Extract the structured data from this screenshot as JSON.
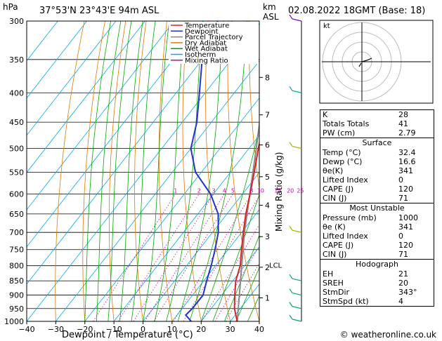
{
  "header": {
    "units": "hPa",
    "location": "37°53'N  23°43'E  94m  ASL",
    "km_label": "km",
    "asl_label": "ASL",
    "datetime": "02.08.2022  18GMT  (Base: 18)"
  },
  "chart_data": {
    "type": "skew-t",
    "xlabel": "Dewpoint / Temperature (°C)",
    "right_axis_label": "Mixing Ratio (g/kg)",
    "x_ticks": [
      -40,
      -30,
      -20,
      -10,
      0,
      10,
      20,
      30,
      40
    ],
    "pressure_levels": [
      300,
      350,
      400,
      450,
      500,
      550,
      600,
      650,
      700,
      750,
      800,
      850,
      900,
      950,
      1000
    ],
    "km_ticks": [
      {
        "km": "1",
        "p": 910
      },
      {
        "km": "2",
        "p": 805
      },
      {
        "km": "3",
        "p": 712
      },
      {
        "km": "4",
        "p": 628
      },
      {
        "km": "5",
        "p": 560
      },
      {
        "km": "6",
        "p": 493
      },
      {
        "km": "7",
        "p": 437
      },
      {
        "km": "8",
        "p": 376
      }
    ],
    "lcl": {
      "label": "LCL",
      "p": 800
    },
    "mixing_ratio_labels": [
      "1",
      "2",
      "3",
      "4",
      "5",
      "8",
      "10",
      "15",
      "20",
      "25"
    ],
    "mixing_ratios": [
      1,
      2,
      3,
      4,
      5,
      8,
      10,
      15,
      20,
      25
    ],
    "legend": [
      {
        "name": "Temperature",
        "color": "#dd2222"
      },
      {
        "name": "Dewpoint",
        "color": "#2233cc"
      },
      {
        "name": "Parcel Trajectory",
        "color": "#888888"
      },
      {
        "name": "Dry Adiabat",
        "color": "#e07b00"
      },
      {
        "name": "Wet Adiabat",
        "color": "#00aa00"
      },
      {
        "name": "Isotherm",
        "color": "#00aaee"
      },
      {
        "name": "Mixing Ratio",
        "color": "#cc00aa"
      }
    ],
    "temperature": [
      [
        1000,
        32.4
      ],
      [
        950,
        28
      ],
      [
        900,
        24.5
      ],
      [
        850,
        21
      ],
      [
        800,
        18.5
      ],
      [
        750,
        14.6
      ],
      [
        700,
        10.6
      ],
      [
        650,
        6.5
      ],
      [
        600,
        2.6
      ],
      [
        550,
        -1.8
      ],
      [
        500,
        -6.8
      ],
      [
        450,
        -12
      ],
      [
        400,
        -18
      ],
      [
        350,
        -25
      ],
      [
        300,
        -33
      ]
    ],
    "dewpoint": [
      [
        1000,
        16.6
      ],
      [
        975,
        13
      ],
      [
        950,
        13.5
      ],
      [
        900,
        13.6
      ],
      [
        850,
        11
      ],
      [
        800,
        8.5
      ],
      [
        750,
        5.5
      ],
      [
        700,
        2
      ],
      [
        650,
        -3
      ],
      [
        600,
        -11
      ],
      [
        550,
        -22
      ],
      [
        500,
        -30
      ],
      [
        450,
        -35
      ],
      [
        400,
        -42
      ],
      [
        350,
        -50
      ],
      [
        300,
        -55
      ]
    ],
    "parcel": [
      [
        1000,
        32.4
      ],
      [
        800,
        19
      ],
      [
        700,
        11
      ],
      [
        600,
        2.5
      ],
      [
        500,
        -7.5
      ],
      [
        400,
        -20
      ],
      [
        350,
        -27
      ],
      [
        300,
        -35
      ]
    ]
  },
  "hodograph": {
    "label": "kt"
  },
  "indices": [
    {
      "label": "K",
      "value": "28"
    },
    {
      "label": "Totals Totals",
      "value": "41"
    },
    {
      "label": "PW (cm)",
      "value": "2.79"
    }
  ],
  "surface": {
    "title": "Surface",
    "rows": [
      {
        "label": "Temp (°C)",
        "value": "32.4"
      },
      {
        "label": "Dewp (°C)",
        "value": "16.6"
      },
      {
        "label": "θe(K)",
        "value": "341"
      },
      {
        "label": "Lifted Index",
        "value": "0"
      },
      {
        "label": "CAPE (J)",
        "value": "120"
      },
      {
        "label": "CIN (J)",
        "value": "71"
      }
    ]
  },
  "most_unstable": {
    "title": "Most Unstable",
    "rows": [
      {
        "label": "Pressure (mb)",
        "value": "1000"
      },
      {
        "label": "θe (K)",
        "value": "341"
      },
      {
        "label": "Lifted Index",
        "value": "0"
      },
      {
        "label": "CAPE (J)",
        "value": "120"
      },
      {
        "label": "CIN (J)",
        "value": "71"
      }
    ]
  },
  "hodograph_table": {
    "title": "Hodograph",
    "rows": [
      {
        "label": "EH",
        "value": "21"
      },
      {
        "label": "SREH",
        "value": "20"
      },
      {
        "label": "StmDir",
        "value": "343°"
      },
      {
        "label": "StmSpd (kt)",
        "value": "4"
      }
    ]
  },
  "footer": "© weatheronline.co.uk"
}
